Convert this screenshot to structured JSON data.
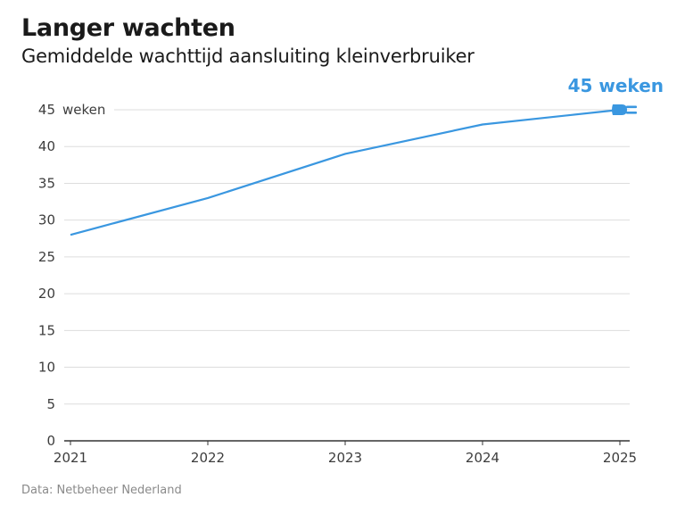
{
  "chart_data": {
    "type": "line",
    "title": "Langer wachten",
    "subtitle": "Gemiddelde wachttijd aansluiting kleinverbruiker",
    "xlabel": "",
    "ylabel": "weken",
    "x": [
      "2021",
      "2022",
      "2023",
      "2024",
      "2025"
    ],
    "series": [
      {
        "name": "Gemiddelde wachttijd",
        "values": [
          28,
          33,
          39,
          43,
          45
        ]
      }
    ],
    "ylim": [
      0,
      45
    ],
    "yticks": [
      0,
      5,
      10,
      15,
      20,
      25,
      30,
      35,
      40,
      45
    ],
    "ytick_unit_label": "weken",
    "grid": true,
    "annotation": {
      "text": "45 weken",
      "x": "2025",
      "y": 45,
      "icon": "plug-icon"
    },
    "source": "Data: Netbeheer Nederland",
    "colors": {
      "line": "#3a97e0",
      "annotation": "#3a97e0",
      "grid": "#dddddd",
      "axis": "#333333"
    }
  }
}
